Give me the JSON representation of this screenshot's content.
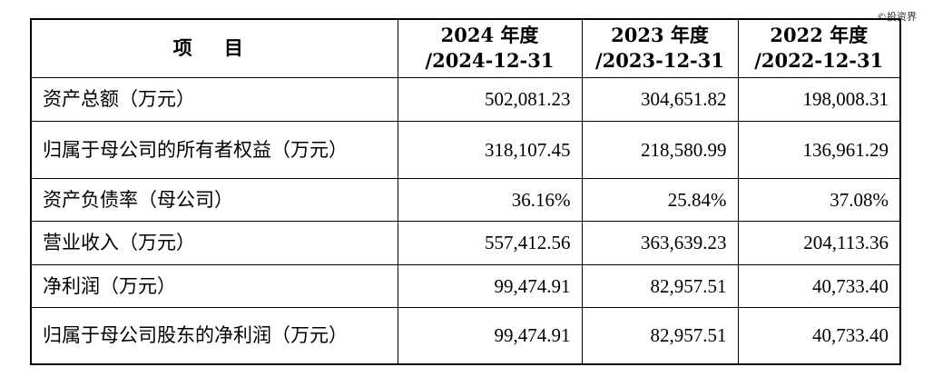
{
  "watermark": "©投资界",
  "table": {
    "header": {
      "item": "项 目",
      "col1": [
        "2024 年度",
        "/2024-12-31"
      ],
      "col2": [
        "2023 年度",
        "/2023-12-31"
      ],
      "col3": [
        "2022 年度",
        "/2022-12-31"
      ]
    },
    "rows": [
      {
        "label": "资产总额（万元）",
        "v2024": "502,081.23",
        "v2023": "304,651.82",
        "v2022": "198,008.31"
      },
      {
        "label": "归属于母公司的所有者权益（万元）",
        "v2024": "318,107.45",
        "v2023": "218,580.99",
        "v2022": "136,961.29"
      },
      {
        "label": "资产负债率（母公司）",
        "v2024": "36.16%",
        "v2023": "25.84%",
        "v2022": "37.08%"
      },
      {
        "label": "营业收入（万元）",
        "v2024": "557,412.56",
        "v2023": "363,639.23",
        "v2022": "204,113.36"
      },
      {
        "label": "净利润（万元）",
        "v2024": "99,474.91",
        "v2023": "82,957.51",
        "v2022": "40,733.40"
      },
      {
        "label": "归属于母公司股东的净利润（万元）",
        "v2024": "99,474.91",
        "v2023": "82,957.51",
        "v2022": "40,733.40"
      }
    ]
  }
}
